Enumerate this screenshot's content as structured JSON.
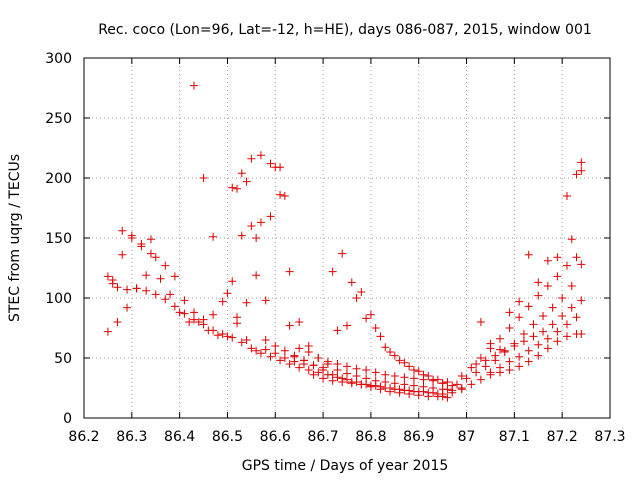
{
  "chart_data": {
    "type": "scatter",
    "title": "Rec. coco (Lon=96, Lat=-12, h=HE), days 086-087, 2015, window 001",
    "xlabel": "GPS time / Days of year 2015",
    "ylabel": "STEC from uqrg / TECUs",
    "xlim": [
      86.2,
      87.3
    ],
    "ylim": [
      0,
      300
    ],
    "xticks": [
      "86.2",
      "86.3",
      "86.4",
      "86.5",
      "86.6",
      "86.7",
      "86.8",
      "86.9",
      "87",
      "87.1",
      "87.2",
      "87.3"
    ],
    "yticks": [
      "0",
      "50",
      "100",
      "150",
      "200",
      "250",
      "300"
    ],
    "grid": true,
    "marker": "plus",
    "color": "#dd0000",
    "series": [
      {
        "x": [
          86.25,
          86.26,
          86.27,
          86.29,
          86.31,
          86.33,
          86.35,
          86.37,
          86.39,
          86.41,
          86.43,
          86.45,
          86.47,
          86.49,
          86.51,
          86.53,
          86.55,
          86.57,
          86.59,
          86.61,
          86.63,
          86.65,
          86.67,
          86.69,
          86.71,
          86.73,
          86.75,
          86.77,
          86.79,
          86.81,
          86.83,
          86.85,
          86.87,
          86.89,
          86.91,
          86.93,
          86.95
        ],
        "y": [
          118,
          112,
          109,
          107,
          108,
          106,
          103,
          99,
          93,
          87,
          82,
          78,
          73,
          70,
          67,
          63,
          58,
          54,
          51,
          48,
          45,
          42,
          40,
          38,
          36,
          34,
          32,
          30,
          28,
          27,
          25,
          24,
          23,
          22,
          22,
          21,
          20
        ]
      },
      {
        "x": [
          86.25,
          86.27,
          86.29,
          86.31,
          86.33,
          86.35,
          86.37,
          86.39,
          86.41,
          86.43,
          86.45,
          86.47,
          86.49,
          86.51,
          86.53,
          86.55,
          86.57,
          86.59,
          86.61,
          86.63,
          86.65,
          86.67,
          86.69,
          86.71,
          86.73,
          86.75,
          86.77,
          86.79,
          86.81,
          86.83,
          86.85,
          86.87,
          86.89,
          86.91,
          86.93,
          86.95,
          86.97
        ],
        "y": [
          72,
          80,
          92,
          108,
          119,
          134,
          127,
          118,
          98,
          88,
          82,
          86,
          97,
          114,
          152,
          160,
          163,
          168,
          186,
          122,
          80,
          60,
          50,
          45,
          40,
          37,
          35,
          33,
          31,
          30,
          29,
          28,
          27,
          26,
          25,
          24,
          23
        ]
      },
      {
        "x": [
          86.26,
          86.28,
          86.3,
          86.32,
          86.34,
          86.36,
          86.38,
          86.4,
          86.42,
          86.44,
          86.46,
          86.48,
          86.5,
          86.52,
          86.54,
          86.56,
          86.58,
          86.6,
          86.62,
          86.64,
          86.66,
          86.68,
          86.7,
          86.72,
          86.74,
          86.76,
          86.78,
          86.8,
          86.82,
          86.84,
          86.86,
          86.88,
          86.9,
          86.92,
          86.94,
          86.96
        ],
        "y": [
          115,
          136,
          152,
          143,
          149,
          116,
          103,
          88,
          80,
          80,
          73,
          69,
          68,
          79,
          65,
          56,
          57,
          54,
          50,
          47,
          45,
          44,
          42,
          122,
          137,
          113,
          105,
          86,
          68,
          55,
          48,
          43,
          39,
          35,
          32,
          30
        ]
      },
      {
        "x": [
          86.28,
          86.3,
          86.32,
          86.34,
          86.43,
          86.45,
          86.47,
          86.5,
          86.52,
          86.54,
          86.56,
          86.58,
          86.6,
          86.62,
          86.64,
          86.66,
          86.68,
          86.7,
          86.72,
          86.74,
          86.76,
          86.78,
          86.8,
          86.82,
          86.84,
          86.86,
          86.88,
          86.9,
          86.92,
          86.94
        ],
        "y": [
          156,
          150,
          145,
          137,
          277,
          200,
          151,
          104,
          191,
          197,
          150,
          98,
          209,
          185,
          51,
          48,
          36,
          33,
          31,
          30,
          29,
          28,
          27,
          26,
          25,
          24,
          23,
          22,
          21,
          20
        ]
      },
      {
        "x": [
          86.51,
          86.53,
          86.55,
          86.57,
          86.59,
          86.61,
          86.63,
          86.65,
          86.67,
          86.69,
          86.71,
          86.73,
          86.75,
          86.77,
          86.79,
          86.81,
          86.83,
          86.85,
          86.87,
          86.89,
          86.91,
          86.93,
          86.95
        ],
        "y": [
          192,
          204,
          216,
          219,
          212,
          209,
          77,
          58,
          55,
          50,
          47,
          45,
          43,
          41,
          40,
          38,
          36,
          35,
          34,
          33,
          32,
          31,
          29
        ]
      },
      {
        "x": [
          86.52,
          86.54,
          86.56,
          86.58,
          86.6,
          86.62,
          86.64,
          86.66,
          86.68,
          86.7,
          86.72,
          86.74,
          86.76,
          86.78,
          86.8,
          86.82,
          86.84,
          86.86,
          86.88,
          86.9,
          86.92,
          86.94,
          86.96
        ],
        "y": [
          84,
          96,
          119,
          65,
          60,
          56,
          52,
          48,
          44,
          40,
          36,
          33,
          30,
          28,
          26,
          24,
          22,
          21,
          20,
          19,
          18,
          18,
          17
        ]
      },
      {
        "x": [
          86.73,
          86.75,
          86.77,
          86.79,
          86.81,
          86.83,
          86.85,
          86.87,
          86.89,
          86.91,
          86.93,
          86.95,
          86.97,
          86.99
        ],
        "y": [
          73,
          77,
          100,
          83,
          75,
          59,
          52,
          46,
          40,
          36,
          32,
          29,
          27,
          25
        ]
      },
      {
        "x": [
          86.95,
          86.97,
          86.99,
          87.01,
          87.03,
          87.05,
          87.07,
          87.09,
          87.11,
          87.13,
          87.15,
          87.17,
          87.19,
          87.21,
          87.23,
          87.24
        ],
        "y": [
          18,
          21,
          24,
          28,
          32,
          36,
          38,
          40,
          43,
          47,
          52,
          58,
          64,
          68,
          70,
          70
        ]
      },
      {
        "x": [
          86.96,
          86.98,
          87.0,
          87.02,
          87.04,
          87.06,
          87.08,
          87.1,
          87.12,
          87.14,
          87.16,
          87.18,
          87.2,
          87.22,
          87.24
        ],
        "y": [
          24,
          28,
          33,
          38,
          43,
          48,
          55,
          62,
          70,
          78,
          85,
          92,
          100,
          110,
          128
        ]
      },
      {
        "x": [
          86.99,
          87.01,
          87.03,
          87.05,
          87.07,
          87.09,
          87.11,
          87.13,
          87.15,
          87.17,
          87.19,
          87.21,
          87.23
        ],
        "y": [
          35,
          42,
          50,
          58,
          66,
          75,
          84,
          93,
          102,
          110,
          118,
          127,
          134
        ]
      },
      {
        "x": [
          87.03,
          87.05,
          87.07,
          87.09,
          87.11,
          87.13,
          87.15,
          87.17,
          87.19,
          87.21,
          87.22,
          87.23,
          87.24
        ],
        "y": [
          80,
          62,
          57,
          88,
          97,
          136,
          113,
          131,
          134,
          185,
          149,
          203,
          213
        ]
      },
      {
        "x": [
          87.02,
          87.04,
          87.06,
          87.08,
          87.1,
          87.12,
          87.14,
          87.16,
          87.18,
          87.2,
          87.22,
          87.24
        ],
        "y": [
          45,
          48,
          52,
          56,
          60,
          64,
          68,
          72,
          78,
          85,
          92,
          98
        ]
      },
      {
        "x": [
          87.05,
          87.07,
          87.09,
          87.11,
          87.13,
          87.15,
          87.17,
          87.19,
          87.21,
          87.23,
          87.24
        ],
        "y": [
          38,
          42,
          47,
          51,
          56,
          61,
          66,
          72,
          78,
          84,
          206
        ]
      }
    ]
  }
}
